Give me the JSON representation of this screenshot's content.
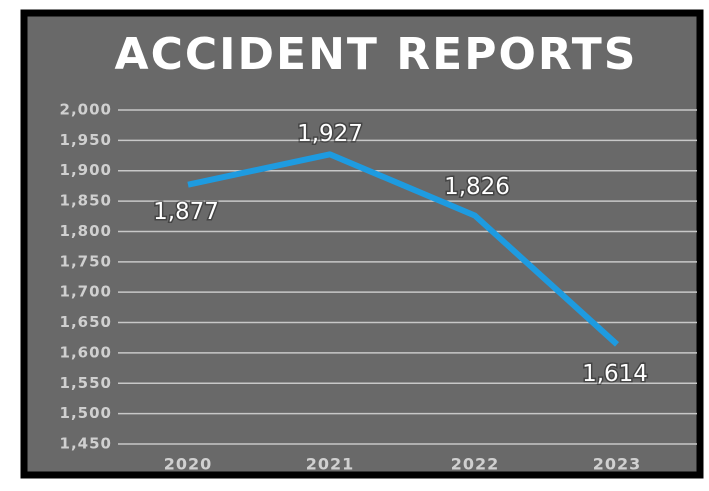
{
  "chart_data": {
    "type": "line",
    "title": "ACCIDENT REPORTS",
    "categories": [
      "2020",
      "2021",
      "2022",
      "2023"
    ],
    "series": [
      {
        "color": "#1e9be0",
        "values": [
          1877,
          1927,
          1826,
          1614
        ],
        "value_labels": [
          "1,877",
          "1,927",
          "1,826",
          "1,614"
        ]
      }
    ],
    "ylim": [
      1450,
      2000
    ],
    "yticks": [
      {
        "value": 1450,
        "label": "1,450"
      },
      {
        "value": 1500,
        "label": "1,500"
      },
      {
        "value": 1550,
        "label": "1,550"
      },
      {
        "value": 1600,
        "label": "1,600"
      },
      {
        "value": 1650,
        "label": "1,650"
      },
      {
        "value": 1700,
        "label": "1,700"
      },
      {
        "value": 1750,
        "label": "1,750"
      },
      {
        "value": 1800,
        "label": "1,800"
      },
      {
        "value": 1850,
        "label": "1,850"
      },
      {
        "value": 1900,
        "label": "1,900"
      },
      {
        "value": 1950,
        "label": "1,950"
      },
      {
        "value": 2000,
        "label": "2,000"
      }
    ],
    "grid": true
  }
}
